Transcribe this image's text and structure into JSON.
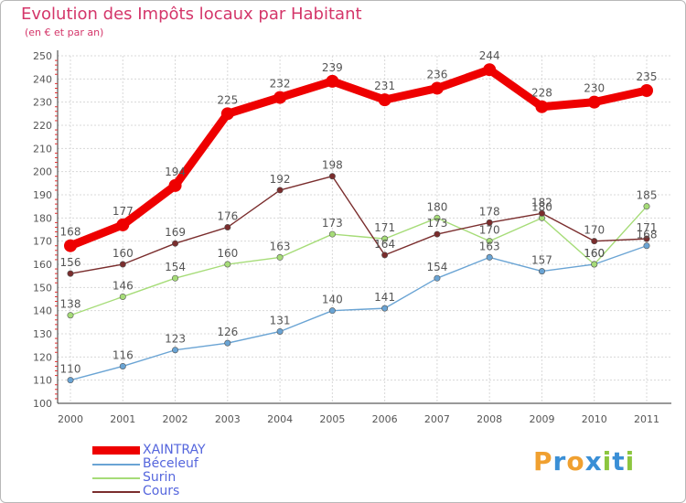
{
  "title": "Evolution des Impôts locaux par Habitant",
  "subtitle": "(en € et par an)",
  "brand": {
    "letters": [
      "P",
      "r",
      "o",
      "x",
      "i",
      "t",
      "i"
    ],
    "colors": [
      "#f0a030",
      "#3a8fd6",
      "#f0a030",
      "#3a8fd6",
      "#8cc63f",
      "#3a8fd6",
      "#8cc63f"
    ]
  },
  "chart_data": {
    "type": "line",
    "title": "Evolution des Impôts locaux par Habitant",
    "subtitle": "(en € et par an)",
    "xlabel": "",
    "ylabel": "",
    "ylim": [
      100,
      250
    ],
    "yticks": [
      100,
      110,
      120,
      130,
      140,
      150,
      160,
      170,
      180,
      190,
      200,
      210,
      220,
      230,
      240,
      250
    ],
    "grid": true,
    "legend": "bottom-left",
    "categories": [
      "2000",
      "2001",
      "2002",
      "2003",
      "2004",
      "2005",
      "2006",
      "2007",
      "2008",
      "2009",
      "2010",
      "2011"
    ],
    "series": [
      {
        "name": "XAINTRAY",
        "color": "#ee0000",
        "values": [
          168,
          177,
          194,
          225,
          232,
          239,
          231,
          236,
          244,
          228,
          230,
          235
        ]
      },
      {
        "name": "Béceleuf",
        "color": "#6aa4d4",
        "values": [
          110,
          116,
          123,
          126,
          131,
          140,
          141,
          154,
          163,
          157,
          160,
          168
        ]
      },
      {
        "name": "Surin",
        "color": "#a6dc78",
        "values": [
          138,
          146,
          154,
          160,
          163,
          173,
          171,
          180,
          170,
          180,
          160,
          185
        ]
      },
      {
        "name": "Cours",
        "color": "#7a2d2d",
        "values": [
          156,
          160,
          169,
          176,
          192,
          198,
          164,
          173,
          178,
          182,
          170,
          171
        ]
      }
    ]
  }
}
